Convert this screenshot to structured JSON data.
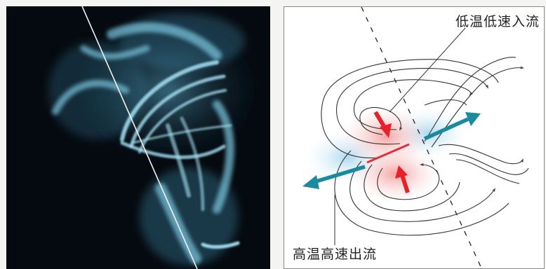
{
  "diagram": {
    "label_inflow": "低温低速入流",
    "label_outflow": "高温高速出流",
    "colors": {
      "inflow_arrow": "#e8202a",
      "outflow_arrow": "#1a8aa0",
      "heated_region": "#f4a0a0",
      "cool_region": "#9fd3ec",
      "current_sheet": "#e0303a",
      "field_lines": "#333333"
    }
  },
  "photo": {
    "colors": {
      "background": "#050a10",
      "loops": "#8fd4ea"
    }
  }
}
